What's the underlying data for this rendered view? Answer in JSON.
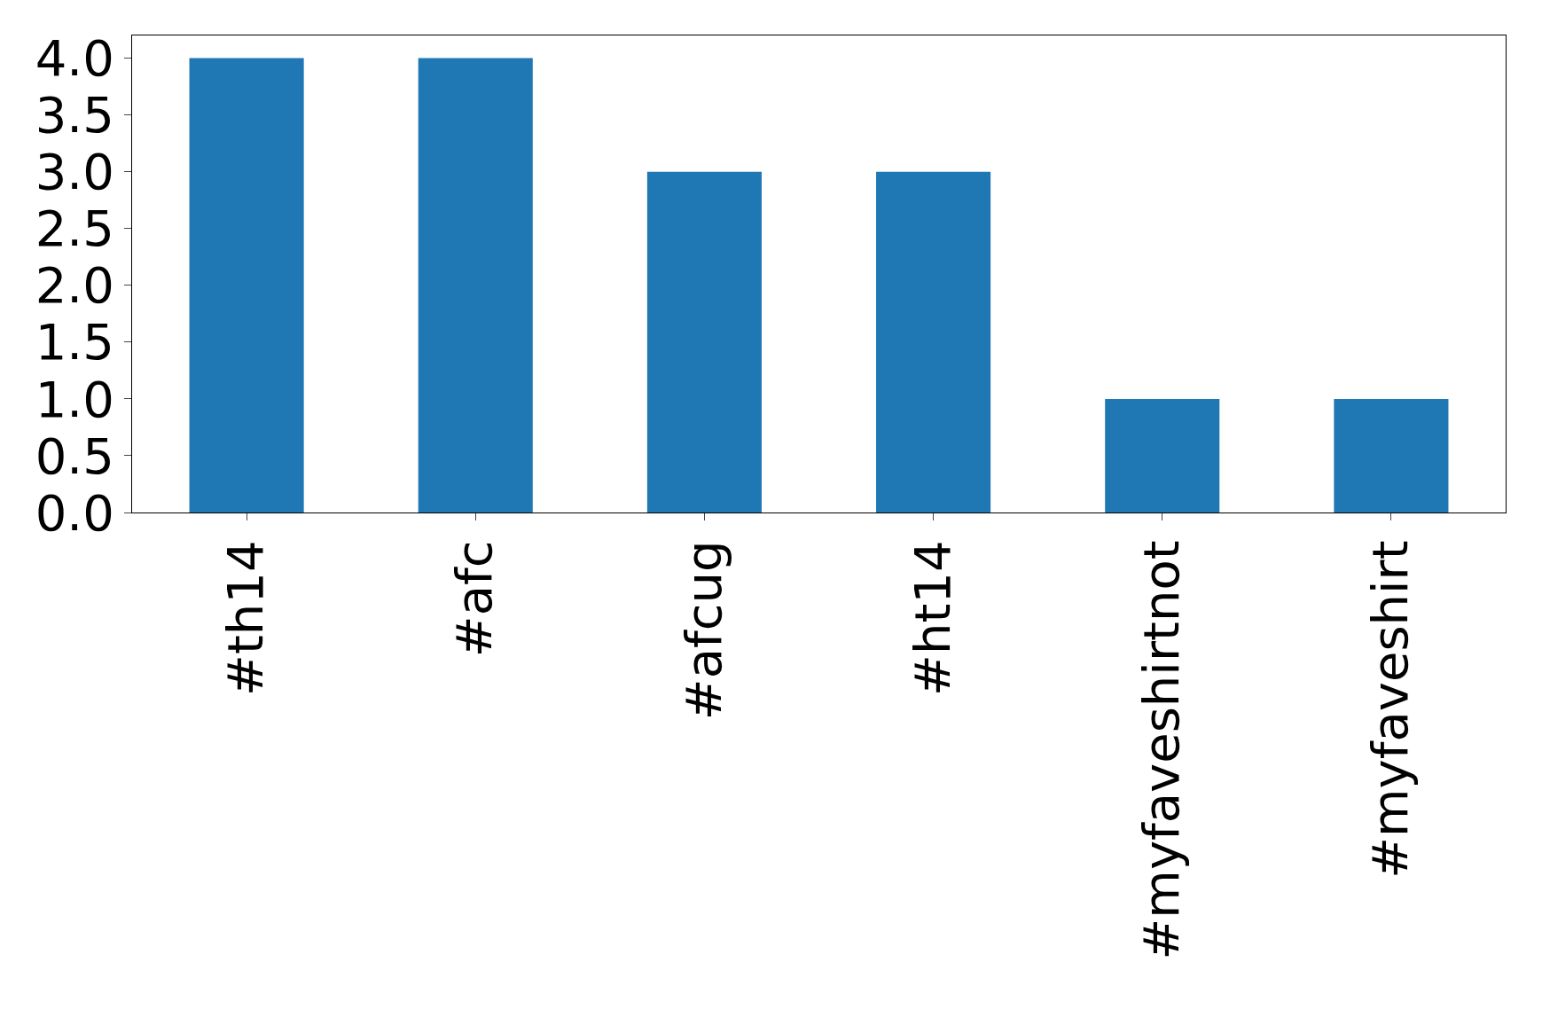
{
  "chart_data": {
    "type": "bar",
    "categories": [
      "#th14",
      "#afc",
      "#afcug",
      "#ht14",
      "#myfaveshirtnot",
      "#myfaveshirt"
    ],
    "values": [
      4,
      4,
      3,
      3,
      1,
      1
    ],
    "color": "#1f77b4",
    "ylim": [
      0,
      4.2
    ],
    "yticks": [
      {
        "value": 0,
        "label": "0.0"
      },
      {
        "value": 0.5,
        "label": "0.5"
      },
      {
        "value": 1,
        "label": "1.0"
      },
      {
        "value": 1.5,
        "label": "1.5"
      },
      {
        "value": 2,
        "label": "2.0"
      },
      {
        "value": 2.5,
        "label": "2.5"
      },
      {
        "value": 3,
        "label": "3.0"
      },
      {
        "value": 3.5,
        "label": "3.5"
      },
      {
        "value": 4,
        "label": "4.0"
      }
    ],
    "legend": false
  }
}
